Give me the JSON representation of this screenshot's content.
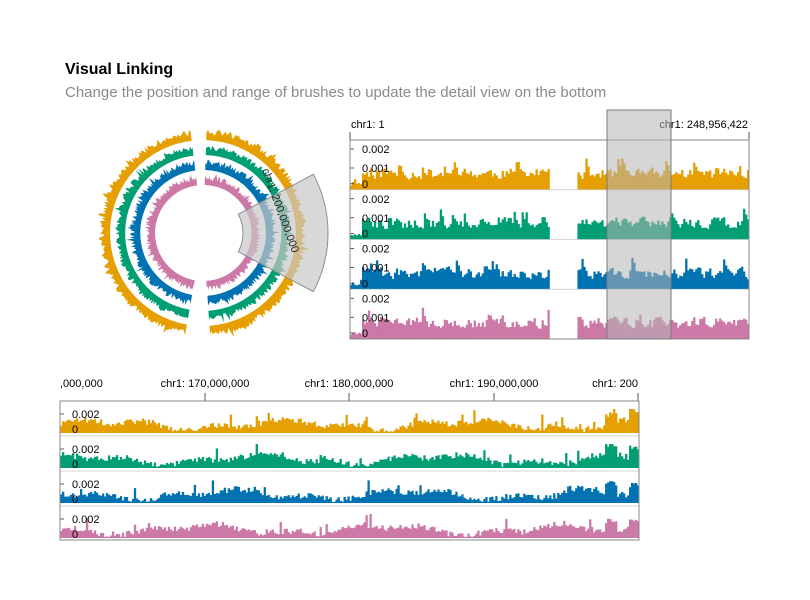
{
  "header": {
    "title": "Visual Linking",
    "subtitle": "Change the position and range of brushes to update the detail view on the bottom"
  },
  "colors": {
    "tracks": [
      "#e69f00",
      "#009e73",
      "#0072b2",
      "#cc79a7"
    ],
    "brush": "#c8c8c8",
    "axis": "#555555"
  },
  "circular_view": {
    "brush_label": "chr1: 200,000,000"
  },
  "overview": {
    "start_label": "chr1: 1",
    "end_label": "chr1: 248,956,422",
    "tick_labels": [
      "0.002",
      "0.001",
      "0"
    ]
  },
  "detail_view": {
    "ticks": [
      ",000,000",
      "chr1: 170,000,000",
      "chr1: 180,000,000",
      "chr1: 190,000,000",
      "chr1: 200"
    ],
    "tick_labels": [
      "0.002",
      "0"
    ]
  }
}
